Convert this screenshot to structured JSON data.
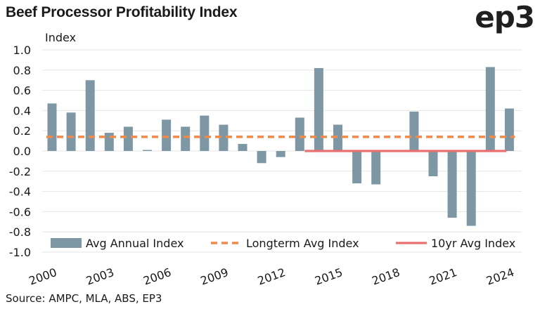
{
  "header": {
    "title": "Beef Processor Profitability Index",
    "logo": "ep3"
  },
  "footer": {
    "source": "Source: AMPC, MLA, ABS, EP3"
  },
  "colors": {
    "bar": "#7d97a5",
    "longterm": "#ef8a4a",
    "tenyr": "#e8706f",
    "grid": "#e6e6e6",
    "text": "#1a1a1a"
  },
  "chart_data": {
    "type": "bar",
    "title": "Beef Processor Profitability Index",
    "ylabel": "Index",
    "ylim": [
      -1.0,
      1.0
    ],
    "yticks": [
      1.0,
      0.8,
      0.6,
      0.4,
      0.2,
      0.0,
      -0.2,
      -0.4,
      -0.6,
      -0.8,
      -1.0
    ],
    "ytick_labels": [
      "1.0",
      "0.8",
      "0.6",
      "0.4",
      "0.2",
      "0.0",
      "-0.2",
      "-0.4",
      "-0.6",
      "-0.8",
      "-1.0"
    ],
    "categories": [
      2000,
      2001,
      2002,
      2003,
      2004,
      2005,
      2006,
      2007,
      2008,
      2009,
      2010,
      2011,
      2012,
      2013,
      2014,
      2015,
      2016,
      2017,
      2018,
      2019,
      2020,
      2021,
      2022,
      2023,
      2024
    ],
    "xtick_labels": [
      "2000",
      "2003",
      "2006",
      "2009",
      "2012",
      "2015",
      "2018",
      "2021",
      "2024"
    ],
    "grid": "horizontal",
    "legend_position": "bottom",
    "series": [
      {
        "name": "Avg Annual Index",
        "kind": "bar",
        "values": [
          0.47,
          0.38,
          0.7,
          0.18,
          0.24,
          0.01,
          0.31,
          0.24,
          0.35,
          0.26,
          0.07,
          -0.12,
          -0.06,
          0.33,
          0.82,
          0.26,
          -0.32,
          -0.33,
          0.0,
          0.39,
          -0.25,
          -0.66,
          -0.74,
          0.83,
          0.42
        ]
      },
      {
        "name": "Longterm Avg Index",
        "kind": "dashed-line",
        "value": 0.14,
        "x_range": [
          2000,
          2024
        ]
      },
      {
        "name": "10yr Avg Index",
        "kind": "line",
        "value": 0.0,
        "x_range": [
          2014,
          2024
        ]
      }
    ]
  }
}
